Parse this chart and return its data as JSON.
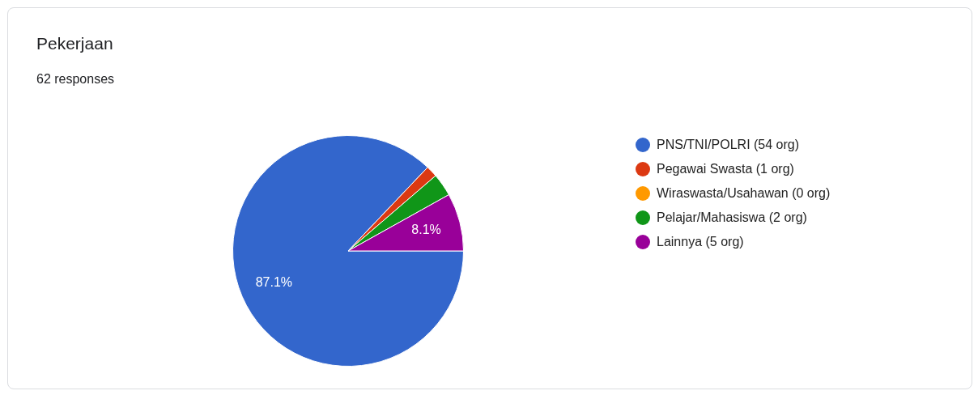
{
  "chart_data": {
    "type": "pie",
    "title": "Pekerjaan",
    "subtitle": "62 responses",
    "categories": [
      "PNS/TNI/POLRI (54 org)",
      "Pegawai Swasta (1 org)",
      "Wiraswasta/Usahawan (0 org)",
      "Pelajar/Mahasiswa (2 org)",
      "Lainnya (5 org)"
    ],
    "values": [
      87.1,
      1.6,
      0,
      3.2,
      8.1
    ],
    "colors": [
      "#3366cc",
      "#dc3912",
      "#ff9900",
      "#109618",
      "#990099"
    ],
    "value_labels": [
      "87.1%",
      null,
      null,
      null,
      "8.1%"
    ],
    "legend": "right"
  }
}
